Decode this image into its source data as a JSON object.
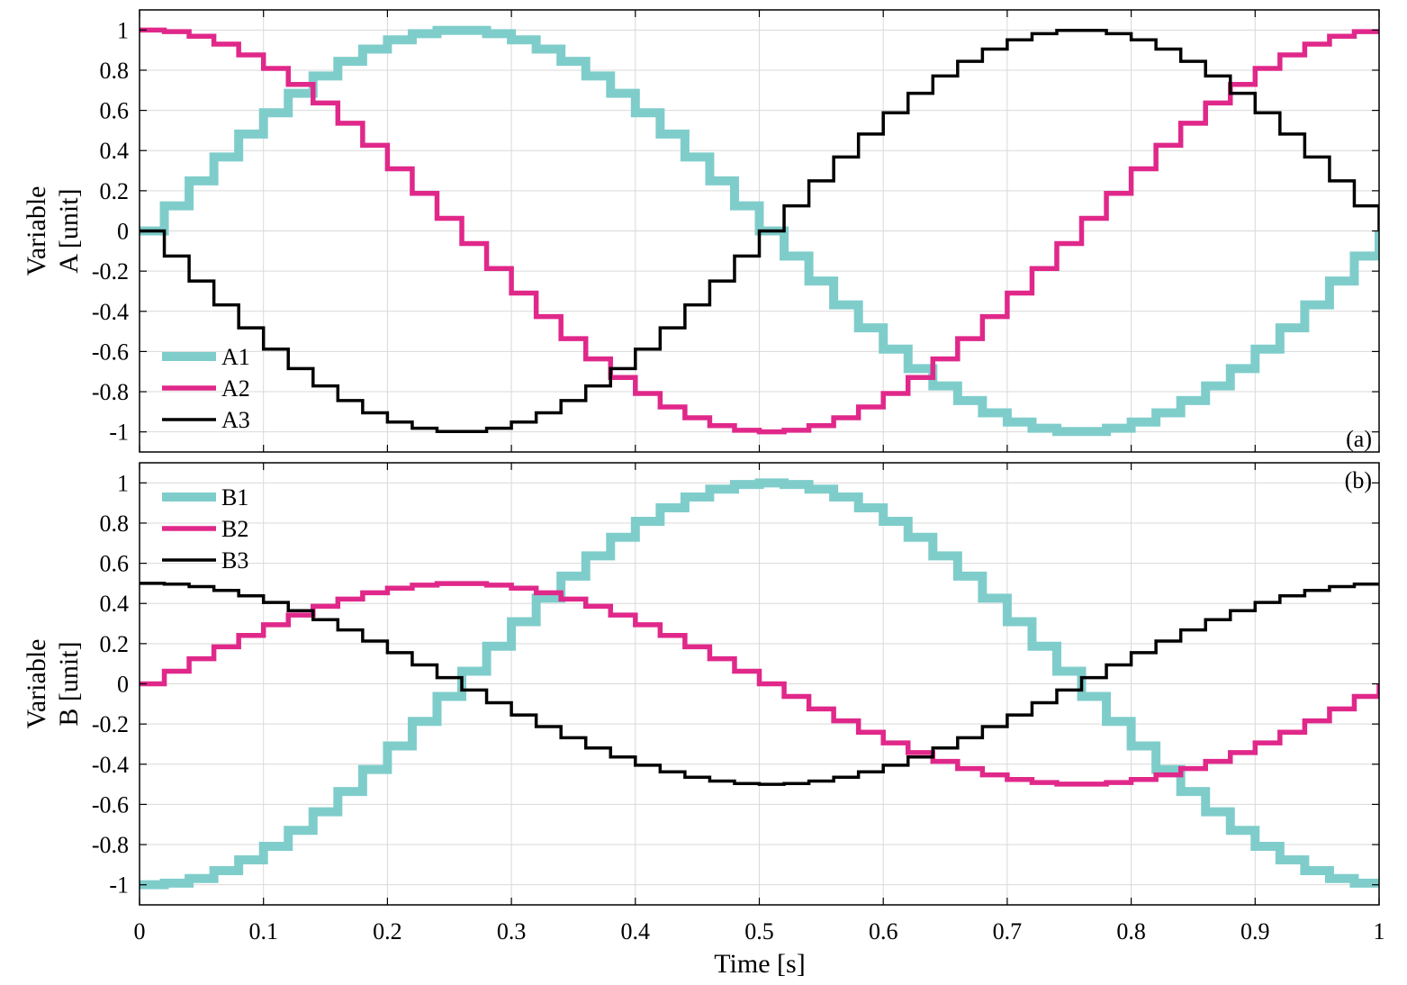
{
  "xlabel": "Time [s]",
  "colors": {
    "series1": "#7fcdcb",
    "series2": "#e0288a",
    "series3": "#000000"
  },
  "chart_data": [
    {
      "type": "line",
      "step": true,
      "panel_tag": "(a)",
      "ylabel_lines": [
        "Variable",
        "A [unit]"
      ],
      "xlim": [
        0,
        1
      ],
      "ylim": [
        -1.1,
        1.1
      ],
      "xticks": [
        "0",
        "0.1",
        "0.2",
        "0.3",
        "0.4",
        "0.5",
        "0.6",
        "0.7",
        "0.8",
        "0.9",
        "1"
      ],
      "yticks": [
        "-1",
        "-0.8",
        "-0.6",
        "-0.4",
        "-0.2",
        "0",
        "0.2",
        "0.4",
        "0.6",
        "0.8",
        "1"
      ],
      "grid": true,
      "legend_position": "bottom-left",
      "step_s": 0.02,
      "x": [
        0,
        0.02,
        0.04,
        0.06,
        0.08,
        0.1,
        0.12,
        0.14,
        0.16,
        0.18,
        0.2,
        0.22,
        0.24,
        0.26,
        0.28,
        0.3,
        0.32,
        0.34,
        0.36,
        0.38,
        0.4,
        0.42,
        0.44,
        0.46,
        0.48,
        0.5,
        0.52,
        0.54,
        0.56,
        0.58,
        0.6,
        0.62,
        0.64,
        0.66,
        0.68,
        0.7,
        0.72,
        0.74,
        0.76,
        0.78,
        0.8,
        0.82,
        0.84,
        0.86,
        0.88,
        0.9,
        0.92,
        0.94,
        0.96,
        0.98,
        1.0
      ],
      "series": [
        {
          "name": "A1",
          "color_key": "series1",
          "width": "thick",
          "values": [
            0,
            0.125,
            0.249,
            0.368,
            0.482,
            0.588,
            0.685,
            0.771,
            0.844,
            0.905,
            0.951,
            0.982,
            0.998,
            0.998,
            0.982,
            0.951,
            0.905,
            0.844,
            0.771,
            0.685,
            0.588,
            0.482,
            0.368,
            0.249,
            0.125,
            0,
            -0.125,
            -0.249,
            -0.368,
            -0.482,
            -0.588,
            -0.685,
            -0.771,
            -0.844,
            -0.905,
            -0.951,
            -0.982,
            -0.998,
            -0.998,
            -0.982,
            -0.951,
            -0.905,
            -0.844,
            -0.771,
            -0.685,
            -0.588,
            -0.482,
            -0.368,
            -0.249,
            -0.125,
            0
          ]
        },
        {
          "name": "A2",
          "color_key": "series2",
          "width": "medium",
          "values": [
            1,
            0.992,
            0.969,
            0.93,
            0.876,
            0.809,
            0.729,
            0.637,
            0.536,
            0.426,
            0.309,
            0.187,
            0.063,
            -0.063,
            -0.187,
            -0.309,
            -0.426,
            -0.536,
            -0.637,
            -0.729,
            -0.809,
            -0.876,
            -0.93,
            -0.969,
            -0.992,
            -1,
            -0.992,
            -0.969,
            -0.93,
            -0.876,
            -0.809,
            -0.729,
            -0.637,
            -0.536,
            -0.426,
            -0.309,
            -0.187,
            -0.063,
            0.063,
            0.187,
            0.309,
            0.426,
            0.536,
            0.637,
            0.729,
            0.809,
            0.876,
            0.93,
            0.969,
            0.992,
            1
          ]
        },
        {
          "name": "A3",
          "color_key": "series3",
          "width": "thin",
          "values": [
            0,
            -0.125,
            -0.249,
            -0.368,
            -0.482,
            -0.588,
            -0.685,
            -0.771,
            -0.844,
            -0.905,
            -0.951,
            -0.982,
            -0.998,
            -0.998,
            -0.982,
            -0.951,
            -0.905,
            -0.844,
            -0.771,
            -0.685,
            -0.588,
            -0.482,
            -0.368,
            -0.249,
            -0.125,
            0,
            0.125,
            0.249,
            0.368,
            0.482,
            0.588,
            0.685,
            0.771,
            0.844,
            0.905,
            0.951,
            0.982,
            0.998,
            0.998,
            0.982,
            0.951,
            0.905,
            0.844,
            0.771,
            0.685,
            0.588,
            0.482,
            0.368,
            0.249,
            0.125,
            0
          ]
        }
      ]
    },
    {
      "type": "line",
      "step": true,
      "panel_tag": "(b)",
      "ylabel_lines": [
        "Variable",
        "B [unit]"
      ],
      "xlim": [
        0,
        1
      ],
      "ylim": [
        -1.1,
        1.1
      ],
      "xticks": [
        "0",
        "0.1",
        "0.2",
        "0.3",
        "0.4",
        "0.5",
        "0.6",
        "0.7",
        "0.8",
        "0.9",
        "1"
      ],
      "yticks": [
        "-1",
        "-0.8",
        "-0.6",
        "-0.4",
        "-0.2",
        "0",
        "0.2",
        "0.4",
        "0.6",
        "0.8",
        "1"
      ],
      "grid": true,
      "legend_position": "top-left",
      "x": [
        0,
        0.02,
        0.04,
        0.06,
        0.08,
        0.1,
        0.12,
        0.14,
        0.16,
        0.18,
        0.2,
        0.22,
        0.24,
        0.26,
        0.28,
        0.3,
        0.32,
        0.34,
        0.36,
        0.38,
        0.4,
        0.42,
        0.44,
        0.46,
        0.48,
        0.5,
        0.52,
        0.54,
        0.56,
        0.58,
        0.6,
        0.62,
        0.64,
        0.66,
        0.68,
        0.7,
        0.72,
        0.74,
        0.76,
        0.78,
        0.8,
        0.82,
        0.84,
        0.86,
        0.88,
        0.9,
        0.92,
        0.94,
        0.96,
        0.98,
        1.0
      ],
      "series": [
        {
          "name": "B1",
          "color_key": "series1",
          "width": "thick",
          "values": [
            -1,
            -0.992,
            -0.969,
            -0.93,
            -0.876,
            -0.809,
            -0.729,
            -0.637,
            -0.536,
            -0.426,
            -0.309,
            -0.187,
            -0.063,
            0.063,
            0.187,
            0.309,
            0.426,
            0.536,
            0.637,
            0.729,
            0.809,
            0.876,
            0.93,
            0.969,
            0.992,
            1,
            0.992,
            0.969,
            0.93,
            0.876,
            0.809,
            0.729,
            0.637,
            0.536,
            0.426,
            0.309,
            0.187,
            0.063,
            -0.063,
            -0.187,
            -0.309,
            -0.426,
            -0.536,
            -0.637,
            -0.729,
            -0.809,
            -0.876,
            -0.93,
            -0.969,
            -0.992,
            -1
          ]
        },
        {
          "name": "B2",
          "color_key": "series2",
          "width": "medium",
          "values": [
            0,
            0.063,
            0.125,
            0.184,
            0.241,
            0.294,
            0.342,
            0.386,
            0.422,
            0.453,
            0.476,
            0.491,
            0.499,
            0.499,
            0.491,
            0.476,
            0.453,
            0.422,
            0.386,
            0.342,
            0.294,
            0.241,
            0.184,
            0.125,
            0.063,
            0,
            -0.063,
            -0.125,
            -0.184,
            -0.241,
            -0.294,
            -0.342,
            -0.386,
            -0.422,
            -0.453,
            -0.476,
            -0.491,
            -0.499,
            -0.499,
            -0.491,
            -0.476,
            -0.453,
            -0.422,
            -0.386,
            -0.342,
            -0.294,
            -0.241,
            -0.184,
            -0.125,
            -0.063,
            0
          ]
        },
        {
          "name": "B3",
          "color_key": "series3",
          "width": "thin",
          "values": [
            0.5,
            0.496,
            0.484,
            0.465,
            0.438,
            0.405,
            0.364,
            0.319,
            0.268,
            0.213,
            0.155,
            0.094,
            0.031,
            -0.031,
            -0.094,
            -0.155,
            -0.213,
            -0.268,
            -0.319,
            -0.364,
            -0.405,
            -0.438,
            -0.465,
            -0.484,
            -0.496,
            -0.5,
            -0.496,
            -0.484,
            -0.465,
            -0.438,
            -0.405,
            -0.364,
            -0.319,
            -0.268,
            -0.213,
            -0.155,
            -0.094,
            -0.031,
            0.031,
            0.094,
            0.155,
            0.213,
            0.268,
            0.319,
            0.364,
            0.405,
            0.438,
            0.465,
            0.484,
            0.496,
            0.5
          ]
        }
      ]
    }
  ]
}
